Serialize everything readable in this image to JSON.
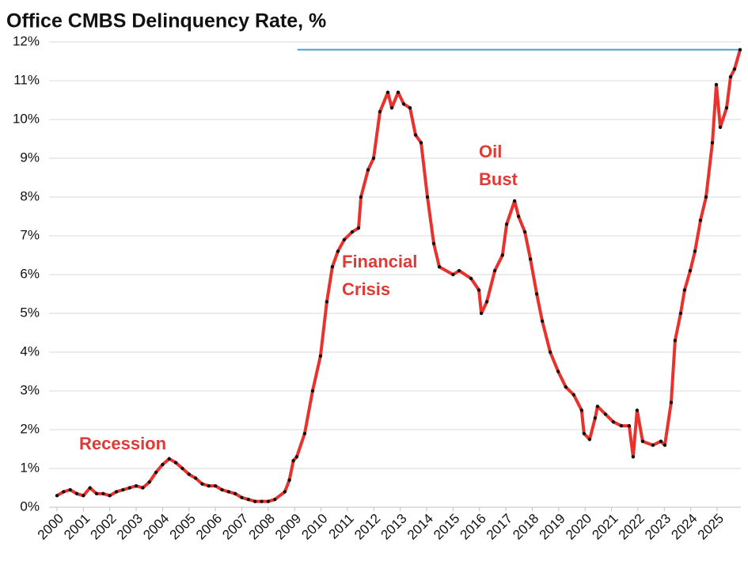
{
  "chart_data": {
    "type": "line",
    "title": "Office CMBS Delinquency Rate, %",
    "x": [
      2000.0,
      2000.25,
      2000.5,
      2000.75,
      2001.0,
      2001.25,
      2001.5,
      2001.75,
      2002.0,
      2002.25,
      2002.5,
      2002.75,
      2003.0,
      2003.25,
      2003.5,
      2003.75,
      2004.0,
      2004.25,
      2004.5,
      2004.75,
      2005.0,
      2005.25,
      2005.5,
      2005.75,
      2006.0,
      2006.25,
      2006.5,
      2006.75,
      2007.0,
      2007.25,
      2007.5,
      2007.75,
      2008.0,
      2008.25,
      2008.63,
      2008.8,
      2008.95,
      2009.08,
      2009.38,
      2009.68,
      2009.98,
      2010.22,
      2010.43,
      2010.64,
      2010.88,
      2011.18,
      2011.42,
      2011.51,
      2011.78,
      2011.99,
      2012.23,
      2012.53,
      2012.68,
      2012.92,
      2013.13,
      2013.37,
      2013.58,
      2013.79,
      2014.03,
      2014.27,
      2014.48,
      2015.0,
      2015.23,
      2015.68,
      2015.98,
      2016.07,
      2016.28,
      2016.58,
      2016.87,
      2017.03,
      2017.33,
      2017.48,
      2017.72,
      2017.93,
      2018.17,
      2018.38,
      2018.68,
      2018.98,
      2019.27,
      2019.57,
      2019.87,
      2019.96,
      2020.17,
      2020.38,
      2020.47,
      2020.77,
      2021.07,
      2021.37,
      2021.67,
      2021.82,
      2021.97,
      2022.18,
      2022.57,
      2022.87,
      2023.02,
      2023.26,
      2023.41,
      2023.62,
      2023.77,
      2023.98,
      2024.16,
      2024.37,
      2024.58,
      2024.82,
      2024.97,
      2025.12,
      2025.36,
      2025.51,
      2025.66,
      2025.87
    ],
    "series": [
      {
        "color": "#e8322d",
        "marker_color": "#111111",
        "values": [
          0.3,
          0.4,
          0.45,
          0.35,
          0.3,
          0.5,
          0.35,
          0.35,
          0.3,
          0.4,
          0.45,
          0.5,
          0.55,
          0.5,
          0.65,
          0.9,
          1.1,
          1.25,
          1.15,
          1.0,
          0.85,
          0.75,
          0.6,
          0.55,
          0.55,
          0.45,
          0.4,
          0.35,
          0.25,
          0.2,
          0.15,
          0.15,
          0.15,
          0.2,
          0.4,
          0.7,
          1.2,
          1.3,
          1.9,
          3.0,
          3.9,
          5.3,
          6.2,
          6.6,
          6.9,
          7.1,
          7.2,
          8.0,
          8.7,
          9.0,
          10.2,
          10.7,
          10.3,
          10.7,
          10.4,
          10.3,
          9.6,
          9.4,
          8.0,
          6.8,
          6.2,
          6.0,
          6.1,
          5.9,
          5.6,
          5.0,
          5.3,
          6.1,
          6.5,
          7.3,
          7.9,
          7.5,
          7.1,
          6.4,
          5.5,
          4.8,
          4.0,
          3.5,
          3.1,
          2.9,
          2.5,
          1.9,
          1.75,
          2.3,
          2.6,
          2.4,
          2.2,
          2.1,
          2.1,
          1.3,
          2.5,
          1.7,
          1.6,
          1.7,
          1.6,
          2.7,
          4.3,
          5.0,
          5.6,
          6.1,
          6.6,
          7.4,
          8.0,
          9.4,
          10.9,
          9.8,
          10.3,
          11.1,
          11.3,
          11.8
        ]
      }
    ],
    "reference_line": {
      "value": 11.8,
      "x_start": 2009.1,
      "color": "#4ba3d3"
    },
    "xlim": [
      2000,
      2025.9
    ],
    "xticks": [
      2000,
      2001,
      2002,
      2003,
      2004,
      2005,
      2006,
      2007,
      2008,
      2009,
      2010,
      2011,
      2012,
      2013,
      2014,
      2015,
      2016,
      2017,
      2018,
      2019,
      2020,
      2021,
      2022,
      2023,
      2024,
      2025
    ],
    "ylim": [
      0,
      12
    ],
    "yticks": [
      {
        "value": 0,
        "label": "0%"
      },
      {
        "value": 1,
        "label": "1%"
      },
      {
        "value": 2,
        "label": "2%"
      },
      {
        "value": 3,
        "label": "3%"
      },
      {
        "value": 4,
        "label": "4%"
      },
      {
        "value": 5,
        "label": "5%"
      },
      {
        "value": 6,
        "label": "6%"
      },
      {
        "value": 7,
        "label": "7%"
      },
      {
        "value": 8,
        "label": "8%"
      },
      {
        "value": 9,
        "label": "9%"
      },
      {
        "value": 10,
        "label": "10%"
      },
      {
        "value": 11,
        "label": "11%"
      },
      {
        "value": 12,
        "label": "12%"
      }
    ],
    "grid": true,
    "annotations": [
      [
        "Recession"
      ],
      [
        "Financial",
        "Crisis"
      ],
      [
        "Oil",
        "Bust"
      ]
    ],
    "annotation_color": "#e03a35"
  }
}
